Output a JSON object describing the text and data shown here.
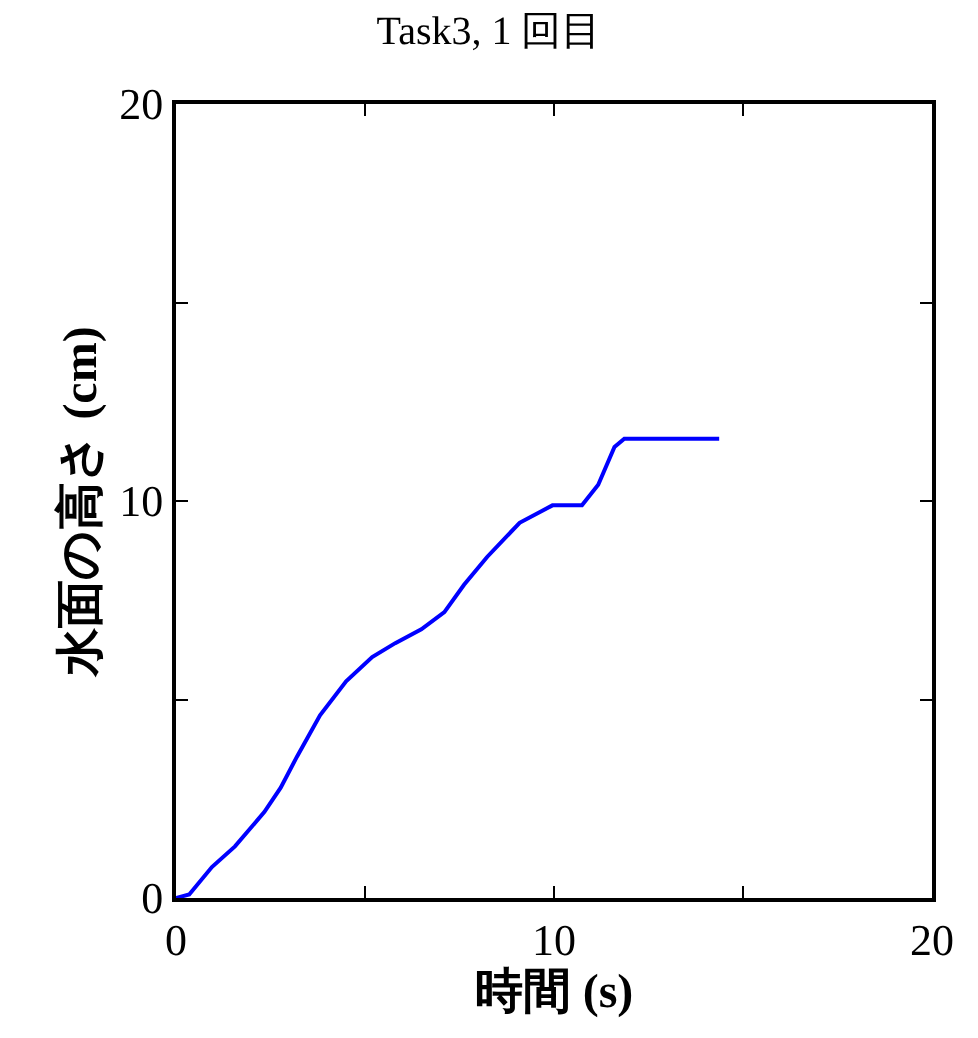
{
  "chart_data": {
    "type": "line",
    "title": "Task3, 1 回目",
    "xlabel": "時間 (s)",
    "ylabel": "水面の高さ (cm)",
    "x": [
      0,
      0.35,
      0.95,
      1.56,
      2.34,
      2.77,
      3.2,
      3.81,
      4.5,
      5.19,
      5.8,
      6.49,
      7.1,
      7.62,
      8.23,
      9.09,
      9.96,
      10.74,
      11.17,
      11.6,
      11.86,
      14.37
    ],
    "series": [
      {
        "color": "#0000ff",
        "values": [
          0,
          0.09,
          0.78,
          1.3,
          2.17,
          2.78,
          3.56,
          4.6,
          5.46,
          6.07,
          6.42,
          6.77,
          7.2,
          7.89,
          8.59,
          9.45,
          9.89,
          9.89,
          10.41,
          11.36,
          11.57,
          11.57
        ]
      }
    ],
    "xlim": [
      0,
      20
    ],
    "ylim": [
      0,
      20
    ],
    "xticks": [
      0,
      {
        "value": 5,
        "label": null
      },
      10,
      {
        "value": 15,
        "label": null
      },
      20
    ],
    "yticks": [
      0,
      {
        "value": 5,
        "label": null
      },
      10,
      {
        "value": 15,
        "label": null
      },
      20
    ],
    "marker": "none",
    "line_style": "solid"
  }
}
